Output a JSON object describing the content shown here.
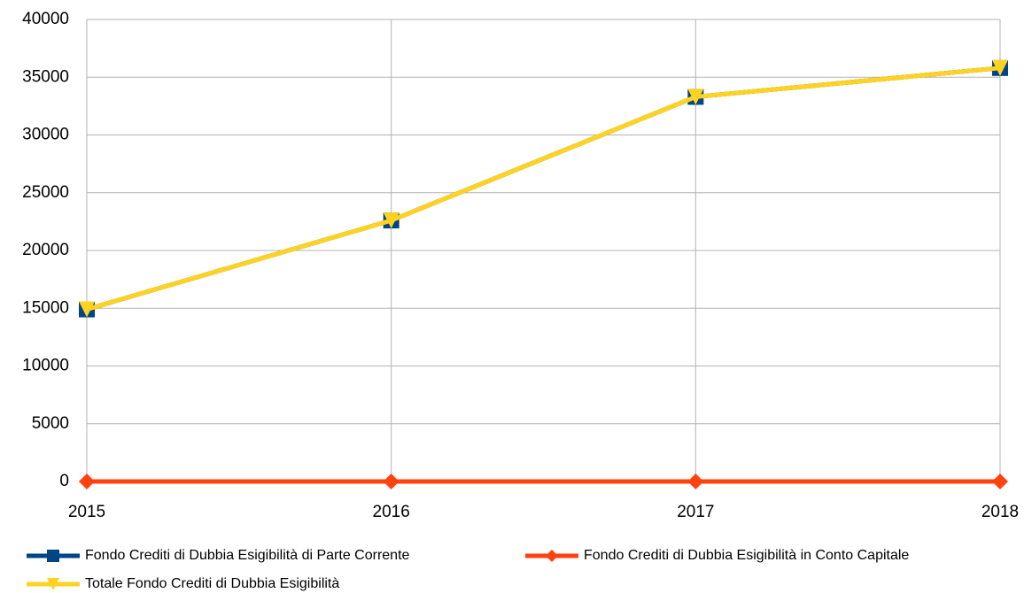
{
  "chart_data": {
    "type": "line",
    "categories": [
      "2015",
      "2016",
      "2017",
      "2018"
    ],
    "series": [
      {
        "name": "Fondo Crediti di Dubbia Esigibilità di Parte Corrente",
        "color": "#004586",
        "marker": "square",
        "values": [
          14900,
          22600,
          33300,
          35800
        ]
      },
      {
        "name": "Fondo Crediti di Dubbia Esigibilità in Conto Capitale",
        "color": "#ff420e",
        "marker": "diamond",
        "values": [
          0,
          0,
          0,
          0
        ]
      },
      {
        "name": "Totale Fondo Crediti di Dubbia Esigibilità",
        "color": "#ffd320",
        "marker": "triangle-down",
        "values": [
          14900,
          22600,
          33300,
          35800
        ]
      }
    ],
    "ylim": [
      0,
      40000
    ],
    "yticks": [
      0,
      5000,
      10000,
      15000,
      20000,
      25000,
      30000,
      35000,
      40000
    ],
    "grid": true,
    "legend": "bottom"
  }
}
